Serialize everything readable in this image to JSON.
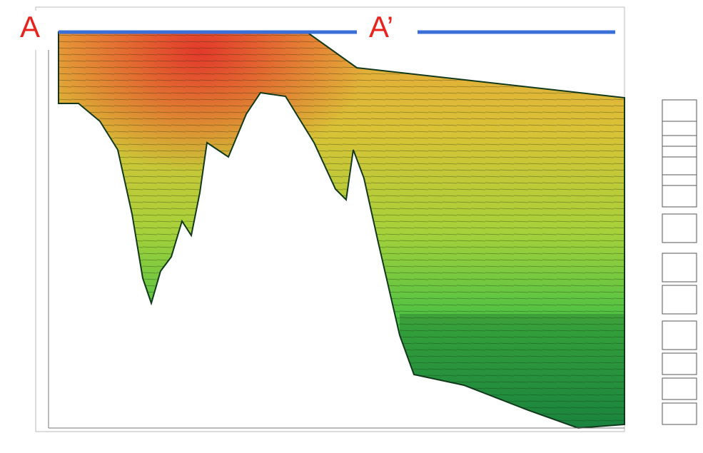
{
  "labels": {
    "start": "A",
    "end": "A’"
  }
}
